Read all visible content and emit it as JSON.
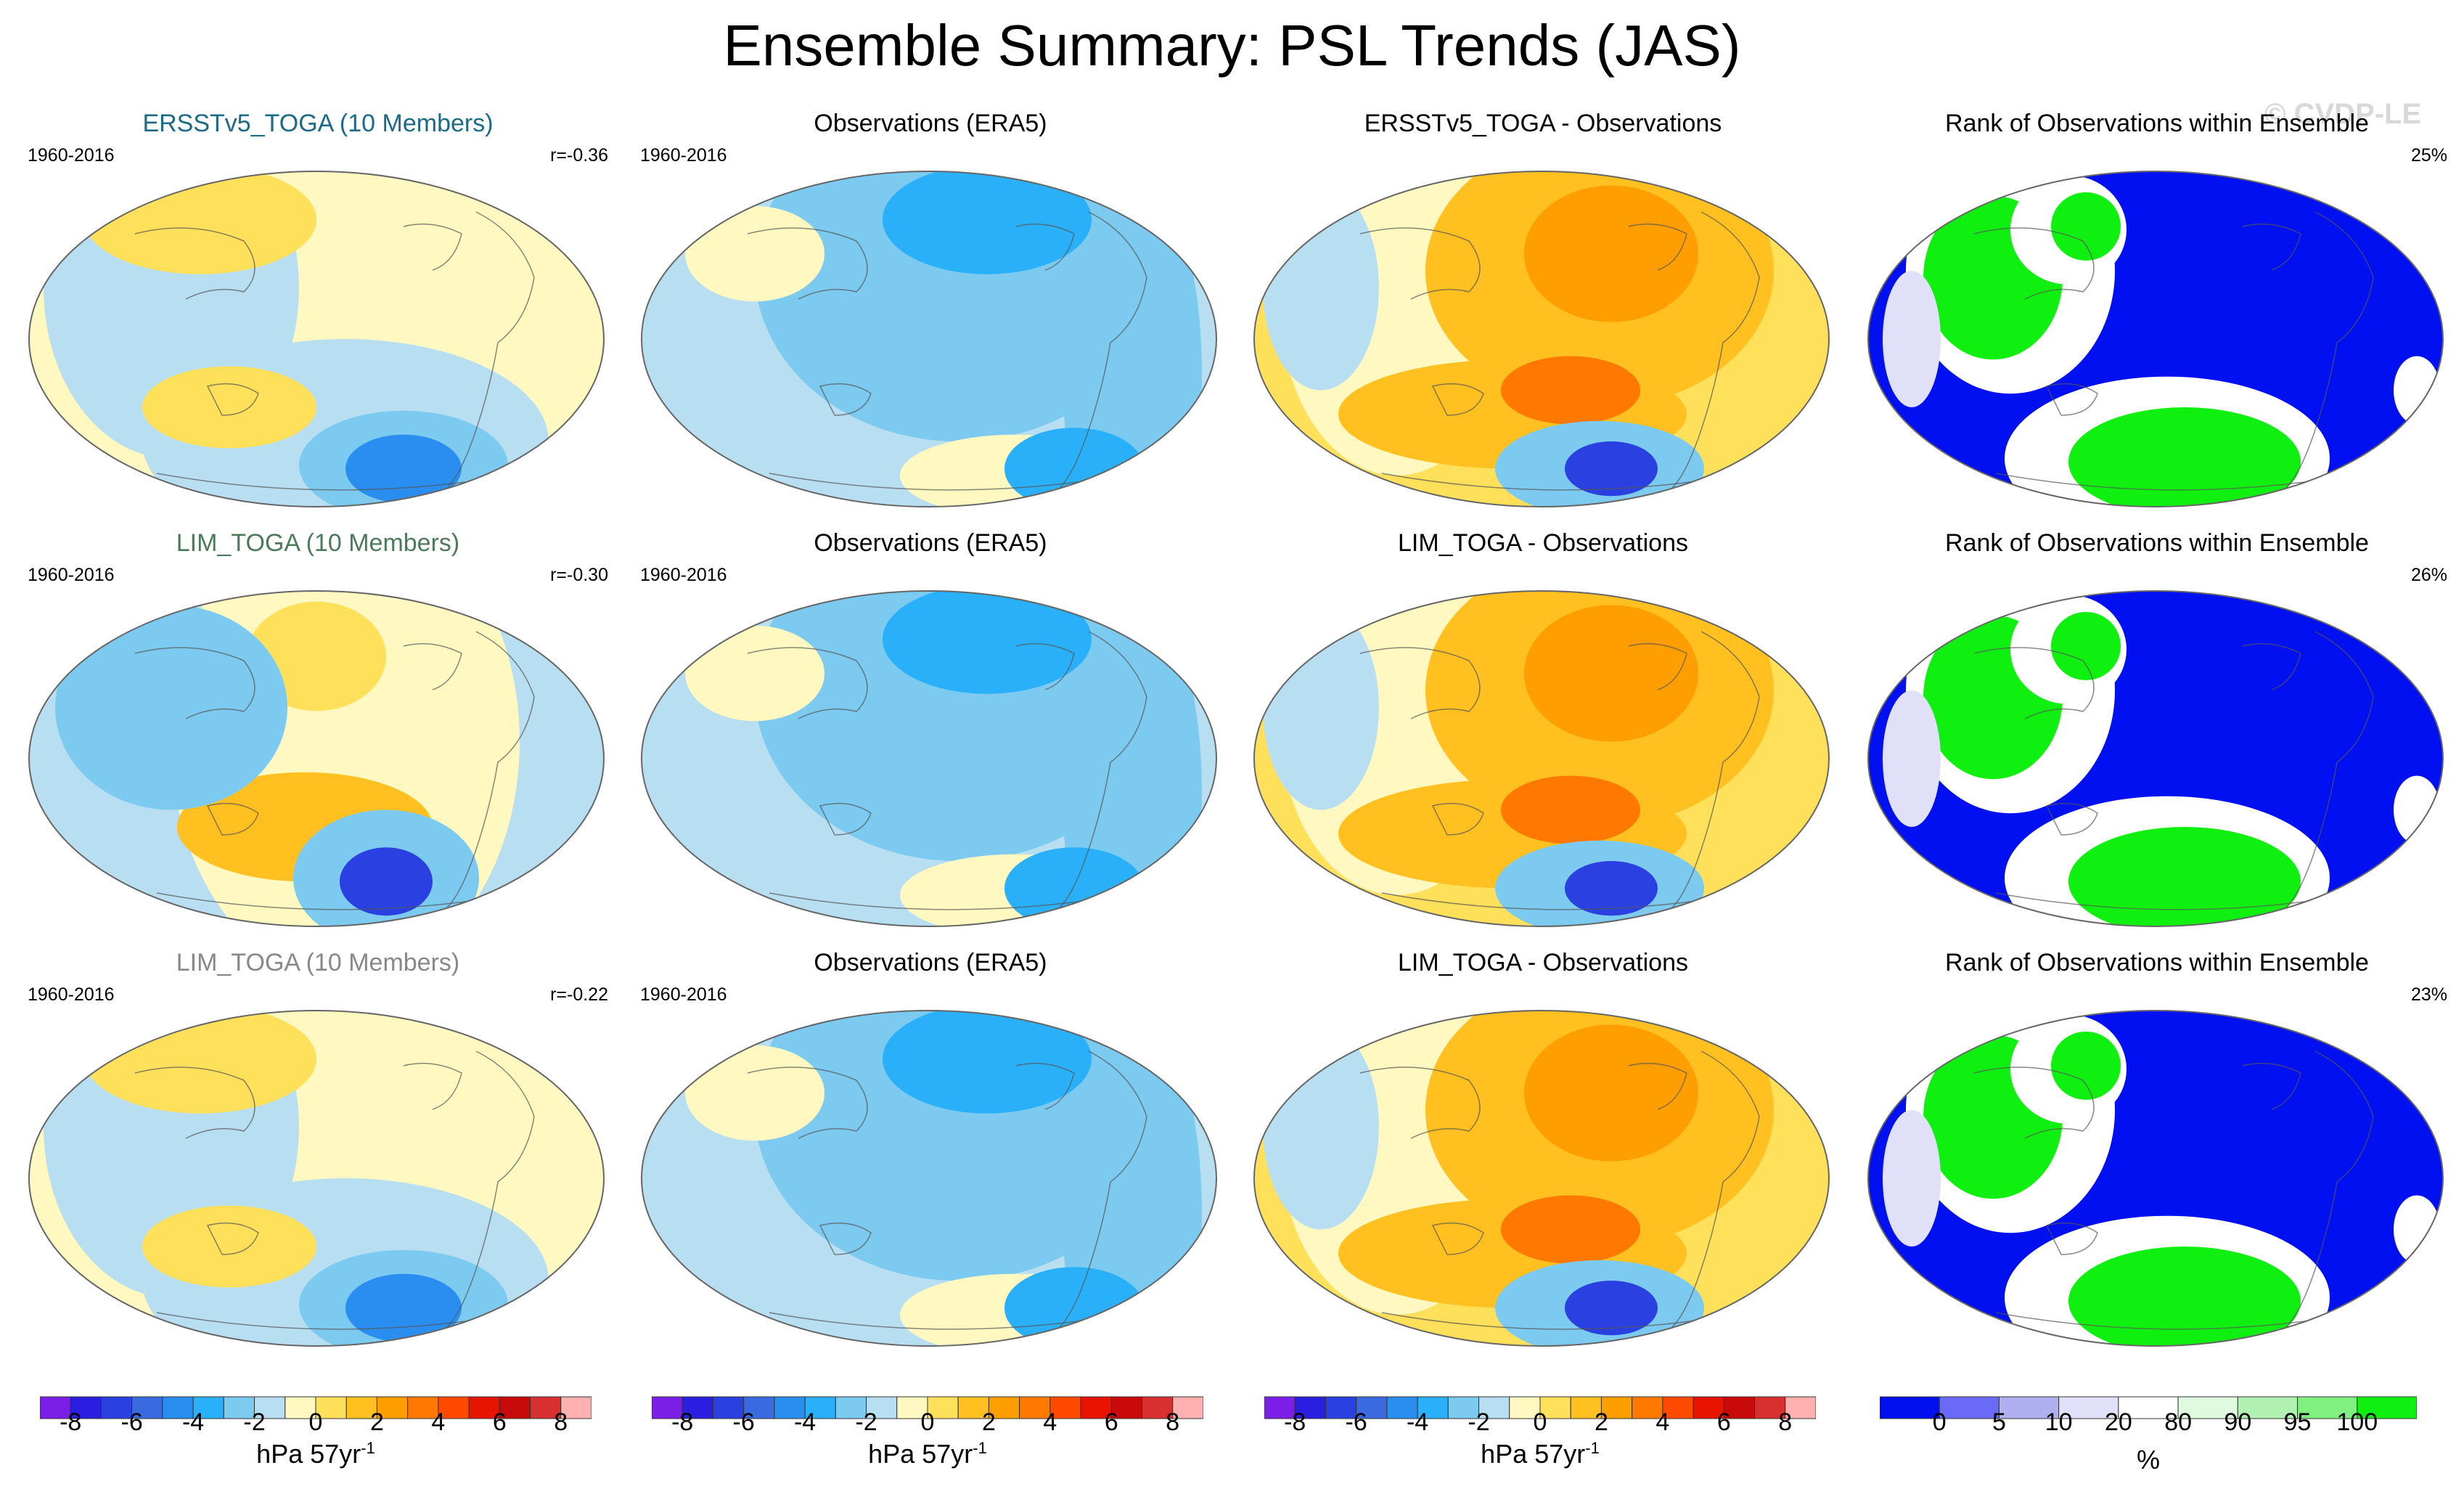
{
  "title": "Ensemble Summary: PSL Trends (JAS)",
  "watermark": "© CVDP-LE",
  "rows": [
    {
      "ensemble": {
        "title": "ERSSTv5_TOGA (10 Members)",
        "title_color": "#1a6a8a",
        "period": "1960-2016",
        "stat": "r=-0.36",
        "palette": "mixed-warm"
      },
      "obs": {
        "title": "Observations (ERA5)",
        "period": "1960-2016",
        "palette": "cool"
      },
      "diff": {
        "title": "ERSSTv5_TOGA - Observations",
        "palette": "warm"
      },
      "rank": {
        "title": "Rank of Observations within Ensemble",
        "stat": "25%"
      }
    },
    {
      "ensemble": {
        "title": "LIM_TOGA (10 Members)",
        "title_color": "#4c7a5a",
        "period": "1960-2016",
        "stat": "r=-0.30",
        "palette": "mixed-cool"
      },
      "obs": {
        "title": "Observations (ERA5)",
        "period": "1960-2016",
        "palette": "cool"
      },
      "diff": {
        "title": "LIM_TOGA - Observations",
        "palette": "warm"
      },
      "rank": {
        "title": "Rank of Observations within Ensemble",
        "stat": "26%"
      }
    },
    {
      "ensemble": {
        "title": "LIM_TOGA (10 Members)",
        "title_color": "#888888",
        "period": "1960-2016",
        "stat": "r=-0.22",
        "palette": "mixed-warm"
      },
      "obs": {
        "title": "Observations (ERA5)",
        "period": "1960-2016",
        "palette": "cool"
      },
      "diff": {
        "title": "LIM_TOGA - Observations",
        "palette": "warm"
      },
      "rank": {
        "title": "Rank of Observations within Ensemble",
        "stat": "23%"
      }
    }
  ],
  "colorbar_trend": {
    "colors": [
      "#7a1ee8",
      "#2a1ee0",
      "#2a40e0",
      "#3a6ae0",
      "#2a8ef0",
      "#2ab0f8",
      "#7ccaf0",
      "#b8def2",
      "#fff8c0",
      "#ffe05a",
      "#ffc020",
      "#ff9e00",
      "#ff7800",
      "#ff4a00",
      "#e81400",
      "#c80a0a",
      "#d83030",
      "#ffb0b0"
    ],
    "tick_labels": [
      "-8",
      "-6",
      "-4",
      "-2",
      "0",
      "2",
      "4",
      "6",
      "8"
    ],
    "units": "hPa 57yr",
    "units_sup": "-1"
  },
  "colorbar_rank": {
    "colors": [
      "#0010f0",
      "#6a6af8",
      "#b0b0f0",
      "#e0e0f8",
      "#ffffff",
      "#e0fae0",
      "#b0f0b0",
      "#80f080",
      "#10f010"
    ],
    "tick_labels": [
      "0",
      "5",
      "10",
      "20",
      "80",
      "90",
      "95",
      "100"
    ],
    "units": "%"
  }
}
